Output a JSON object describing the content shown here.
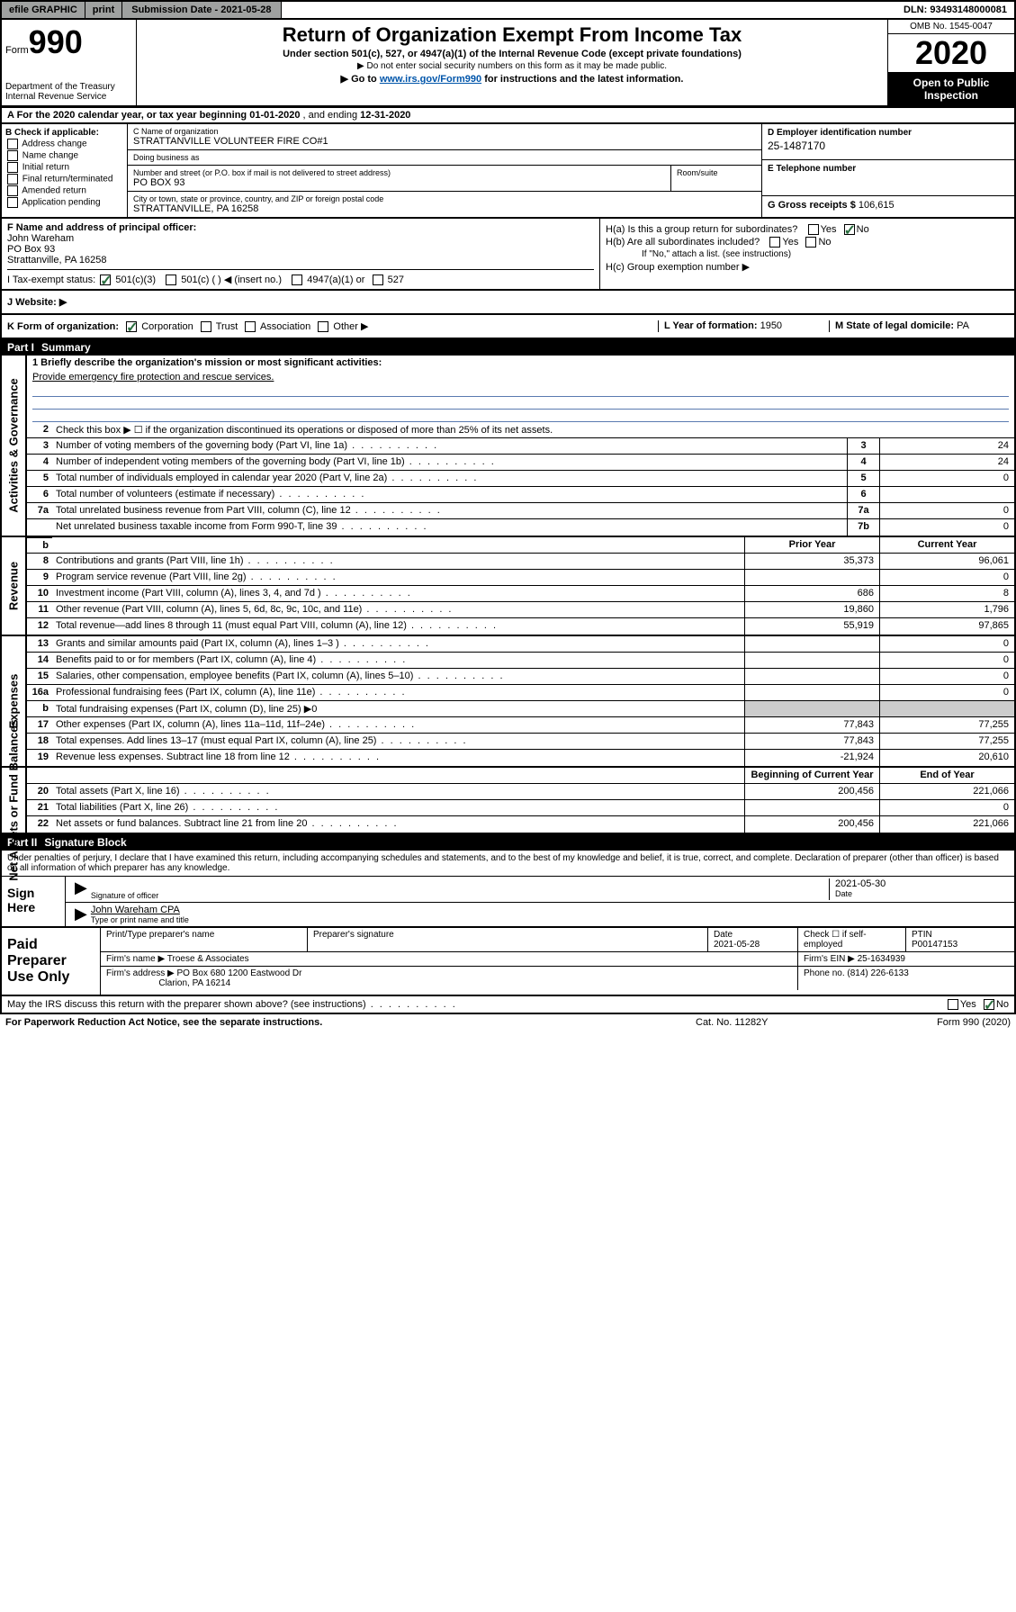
{
  "topbar": {
    "efile_label": "efile GRAPHIC",
    "print_label": "print",
    "submission_label": "Submission Date - 2021-05-28",
    "dln_label": "DLN: 93493148000081"
  },
  "header": {
    "form_prefix": "Form",
    "form_number": "990",
    "dept": "Department of the Treasury\nInternal Revenue Service",
    "title": "Return of Organization Exempt From Income Tax",
    "subtitle": "Under section 501(c), 527, or 4947(a)(1) of the Internal Revenue Code (except private foundations)",
    "note1": "▶ Do not enter social security numbers on this form as it may be made public.",
    "note2_pre": "▶ Go to ",
    "note2_link": "www.irs.gov/Form990",
    "note2_post": " for instructions and the latest information.",
    "omb": "OMB No. 1545-0047",
    "year": "2020",
    "inspect": "Open to Public Inspection"
  },
  "period": {
    "text_a": "A For the 2020 calendar year, or tax year beginning ",
    "begin": "01-01-2020",
    "mid": "  , and ending ",
    "end": "12-31-2020"
  },
  "colB": {
    "header": "B Check if applicable:",
    "opts": [
      "Address change",
      "Name change",
      "Initial return",
      "Final return/terminated",
      "Amended return",
      "Application pending"
    ]
  },
  "colC": {
    "name_lbl": "C Name of organization",
    "name_val": "STRATTANVILLE VOLUNTEER FIRE CO#1",
    "dba_lbl": "Doing business as",
    "dba_val": "",
    "addr_lbl": "Number and street (or P.O. box if mail is not delivered to street address)",
    "addr_val": "PO BOX 93",
    "room_lbl": "Room/suite",
    "city_lbl": "City or town, state or province, country, and ZIP or foreign postal code",
    "city_val": "STRATTANVILLE, PA  16258"
  },
  "colD": {
    "ein_lbl": "D Employer identification number",
    "ein_val": "25-1487170",
    "phone_lbl": "E Telephone number",
    "phone_val": "",
    "gross_lbl": "G Gross receipts $",
    "gross_val": "106,615"
  },
  "sectionF": {
    "lbl": "F  Name and address of principal officer:",
    "name": "John Wareham",
    "addr1": "PO Box 93",
    "addr2": "Strattanville, PA  16258"
  },
  "sectionH": {
    "ha": "H(a)  Is this a group return for subordinates?",
    "hb": "H(b)  Are all subordinates included?",
    "hb_note": "If \"No,\" attach a list. (see instructions)",
    "hc": "H(c)  Group exemption number ▶",
    "yes": "Yes",
    "no": "No"
  },
  "taxStatus": {
    "lbl": "I   Tax-exempt status:",
    "o1": "501(c)(3)",
    "o2": "501(c) (  ) ◀ (insert no.)",
    "o3": "4947(a)(1) or",
    "o4": "527"
  },
  "website": {
    "lbl": "J   Website: ▶",
    "val": ""
  },
  "rowK": {
    "lbl": "K Form of organization:",
    "opts": [
      "Corporation",
      "Trust",
      "Association",
      "Other ▶"
    ],
    "l_lbl": "L Year of formation:",
    "l_val": "1950",
    "m_lbl": "M State of legal domicile:",
    "m_val": "PA"
  },
  "partI": {
    "label": "Part I",
    "title": "Summary"
  },
  "summary": {
    "mission_lbl": "1  Briefly describe the organization's mission or most significant activities:",
    "mission_val": "Provide emergency fire protection and rescue services.",
    "line2": "Check this box ▶ ☐  if the organization discontinued its operations or disposed of more than 25% of its net assets.",
    "hdr_prior": "Prior Year",
    "hdr_curr": "Current Year",
    "hdr_begin": "Beginning of Current Year",
    "hdr_end": "End of Year",
    "sideA": "Activities & Governance",
    "sideR": "Revenue",
    "sideE": "Expenses",
    "sideN": "Net Assets or Fund Balances",
    "rows_ag": [
      {
        "n": "3",
        "t": "Number of voting members of the governing body (Part VI, line 1a)",
        "box": "3",
        "v": "24"
      },
      {
        "n": "4",
        "t": "Number of independent voting members of the governing body (Part VI, line 1b)",
        "box": "4",
        "v": "24"
      },
      {
        "n": "5",
        "t": "Total number of individuals employed in calendar year 2020 (Part V, line 2a)",
        "box": "5",
        "v": "0"
      },
      {
        "n": "6",
        "t": "Total number of volunteers (estimate if necessary)",
        "box": "6",
        "v": ""
      },
      {
        "n": "7a",
        "t": "Total unrelated business revenue from Part VIII, column (C), line 12",
        "box": "7a",
        "v": "0"
      },
      {
        "n": "",
        "t": "Net unrelated business taxable income from Form 990-T, line 39",
        "box": "7b",
        "v": "0"
      }
    ],
    "rows_rev": [
      {
        "n": "8",
        "t": "Contributions and grants (Part VIII, line 1h)",
        "p": "35,373",
        "c": "96,061"
      },
      {
        "n": "9",
        "t": "Program service revenue (Part VIII, line 2g)",
        "p": "",
        "c": "0"
      },
      {
        "n": "10",
        "t": "Investment income (Part VIII, column (A), lines 3, 4, and 7d )",
        "p": "686",
        "c": "8"
      },
      {
        "n": "11",
        "t": "Other revenue (Part VIII, column (A), lines 5, 6d, 8c, 9c, 10c, and 11e)",
        "p": "19,860",
        "c": "1,796"
      },
      {
        "n": "12",
        "t": "Total revenue—add lines 8 through 11 (must equal Part VIII, column (A), line 12)",
        "p": "55,919",
        "c": "97,865"
      }
    ],
    "rows_exp": [
      {
        "n": "13",
        "t": "Grants and similar amounts paid (Part IX, column (A), lines 1–3 )",
        "p": "",
        "c": "0"
      },
      {
        "n": "14",
        "t": "Benefits paid to or for members (Part IX, column (A), line 4)",
        "p": "",
        "c": "0"
      },
      {
        "n": "15",
        "t": "Salaries, other compensation, employee benefits (Part IX, column (A), lines 5–10)",
        "p": "",
        "c": "0"
      },
      {
        "n": "16a",
        "t": "Professional fundraising fees (Part IX, column (A), line 11e)",
        "p": "",
        "c": "0"
      },
      {
        "n": "b",
        "t": "Total fundraising expenses (Part IX, column (D), line 25) ▶0",
        "p": "",
        "c": ""
      },
      {
        "n": "17",
        "t": "Other expenses (Part IX, column (A), lines 11a–11d, 11f–24e)",
        "p": "77,843",
        "c": "77,255"
      },
      {
        "n": "18",
        "t": "Total expenses. Add lines 13–17 (must equal Part IX, column (A), line 25)",
        "p": "77,843",
        "c": "77,255"
      },
      {
        "n": "19",
        "t": "Revenue less expenses. Subtract line 18 from line 12",
        "p": "-21,924",
        "c": "20,610"
      }
    ],
    "rows_net": [
      {
        "n": "20",
        "t": "Total assets (Part X, line 16)",
        "p": "200,456",
        "c": "221,066"
      },
      {
        "n": "21",
        "t": "Total liabilities (Part X, line 26)",
        "p": "",
        "c": "0"
      },
      {
        "n": "22",
        "t": "Net assets or fund balances. Subtract line 21 from line 20",
        "p": "200,456",
        "c": "221,066"
      }
    ]
  },
  "partII": {
    "label": "Part II",
    "title": "Signature Block"
  },
  "sig": {
    "decl": "Under penalties of perjury, I declare that I have examined this return, including accompanying schedules and statements, and to the best of my knowledge and belief, it is true, correct, and complete. Declaration of preparer (other than officer) is based on all information of which preparer has any knowledge.",
    "sign_here": "Sign Here",
    "sig_officer_lbl": "Signature of officer",
    "date_lbl": "Date",
    "date_val": "2021-05-30",
    "name_lbl": "Type or print name and title",
    "name_val": "John Wareham CPA"
  },
  "paid": {
    "lbl": "Paid Preparer Use Only",
    "h_name": "Print/Type preparer's name",
    "h_sig": "Preparer's signature",
    "h_date": "Date",
    "date_val": "2021-05-28",
    "h_check": "Check ☐ if self-employed",
    "h_ptin": "PTIN",
    "ptin_val": "P00147153",
    "firm_name_lbl": "Firm's name    ▶",
    "firm_name_val": "Troese & Associates",
    "firm_ein_lbl": "Firm's EIN ▶",
    "firm_ein_val": "25-1634939",
    "firm_addr_lbl": "Firm's address ▶",
    "firm_addr_val1": "PO Box 680 1200 Eastwood Dr",
    "firm_addr_val2": "Clarion, PA  16214",
    "phone_lbl": "Phone no.",
    "phone_val": "(814) 226-6133"
  },
  "footer": {
    "discuss": "May the IRS discuss this return with the preparer shown above? (see instructions)",
    "yes": "Yes",
    "no": "No",
    "paperwork": "For Paperwork Reduction Act Notice, see the separate instructions.",
    "cat": "Cat. No. 11282Y",
    "form": "Form 990 (2020)"
  }
}
